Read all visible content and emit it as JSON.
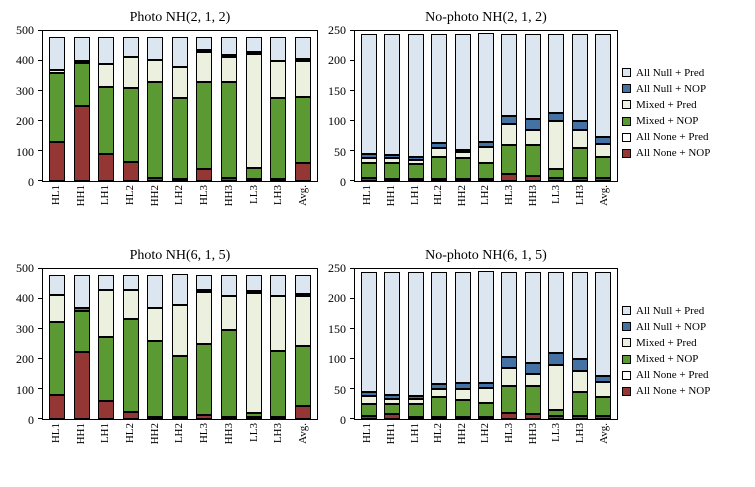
{
  "legend": {
    "items": [
      {
        "label": "All Null + Pred",
        "color": "#dce6f1"
      },
      {
        "label": "All Null + NOP",
        "color": "#4472a4"
      },
      {
        "label": "Mixed + Pred",
        "color": "#ebf1de"
      },
      {
        "label": "Mixed + NOP",
        "color": "#5b9a32"
      },
      {
        "label": "All None + Pred",
        "color": "#ffffff"
      },
      {
        "label": "All None + NOP",
        "color": "#943634"
      }
    ]
  },
  "chart_data": [
    {
      "type": "bar",
      "stacked": true,
      "title": "Photo NH(2, 1, 2)",
      "ylim": [
        0,
        500
      ],
      "ytick_interval": 100,
      "grid": false,
      "legend_position": "right",
      "categories": [
        "HL1",
        "HH1",
        "LH1",
        "HL2",
        "HH2",
        "LH2",
        "HL3",
        "HH3",
        "LL3",
        "LH3",
        "Avg."
      ],
      "series": [
        {
          "name": "All None + NOP",
          "color": "#943634",
          "values": [
            130,
            250,
            90,
            65,
            10,
            5,
            40,
            10,
            8,
            5,
            60
          ]
        },
        {
          "name": "All None + Pred",
          "color": "#ffffff",
          "values": [
            0,
            0,
            0,
            0,
            0,
            0,
            0,
            0,
            0,
            0,
            0
          ]
        },
        {
          "name": "Mixed + NOP",
          "color": "#5b9a32",
          "values": [
            230,
            145,
            225,
            245,
            320,
            270,
            290,
            320,
            35,
            270,
            220
          ]
        },
        {
          "name": "Mixed + Pred",
          "color": "#ebf1de",
          "values": [
            10,
            5,
            75,
            105,
            75,
            105,
            100,
            85,
            380,
            125,
            120
          ]
        },
        {
          "name": "All Null + NOP",
          "color": "#4472a4",
          "values": [
            0,
            0,
            0,
            0,
            0,
            0,
            8,
            5,
            7,
            0,
            5
          ]
        },
        {
          "name": "All Null + Pred",
          "color": "#dce6f1",
          "values": [
            110,
            80,
            90,
            65,
            75,
            100,
            42,
            60,
            50,
            80,
            75
          ]
        }
      ]
    },
    {
      "type": "bar",
      "stacked": true,
      "title": "No-photo NH(2, 1, 2)",
      "ylim": [
        0,
        250
      ],
      "ytick_interval": 50,
      "grid": false,
      "legend_position": "right",
      "categories": [
        "HL1",
        "HH1",
        "LH1",
        "HL2",
        "HH2",
        "LH2",
        "HL3",
        "HH3",
        "LL3",
        "LH3",
        "Avg."
      ],
      "series": [
        {
          "name": "All None + NOP",
          "color": "#943634",
          "values": [
            5,
            3,
            3,
            3,
            3,
            2,
            12,
            8,
            5,
            5,
            5
          ]
        },
        {
          "name": "All None + Pred",
          "color": "#ffffff",
          "values": [
            0,
            0,
            0,
            0,
            0,
            0,
            0,
            0,
            0,
            0,
            0
          ]
        },
        {
          "name": "Mixed + NOP",
          "color": "#5b9a32",
          "values": [
            25,
            27,
            25,
            37,
            35,
            26,
            48,
            52,
            15,
            50,
            35
          ]
        },
        {
          "name": "Mixed + Pred",
          "color": "#ebf1de",
          "values": [
            8,
            8,
            6,
            15,
            10,
            27,
            35,
            25,
            80,
            30,
            22
          ]
        },
        {
          "name": "All Null + NOP",
          "color": "#4472a4",
          "values": [
            7,
            5,
            6,
            8,
            4,
            8,
            13,
            18,
            13,
            15,
            11
          ]
        },
        {
          "name": "All Null + Pred",
          "color": "#dce6f1",
          "values": [
            200,
            202,
            205,
            182,
            193,
            182,
            137,
            142,
            132,
            145,
            172
          ]
        }
      ]
    },
    {
      "type": "bar",
      "stacked": true,
      "title": "Photo NH(6, 1, 5)",
      "ylim": [
        0,
        500
      ],
      "ytick_interval": 100,
      "grid": false,
      "legend_position": "right",
      "categories": [
        "HL1",
        "HH1",
        "LH1",
        "HL2",
        "HH2",
        "LH2",
        "HL3",
        "HH3",
        "LL3",
        "LH3",
        "Avg."
      ],
      "series": [
        {
          "name": "All None + NOP",
          "color": "#943634",
          "values": [
            80,
            225,
            60,
            25,
            5,
            3,
            15,
            5,
            8,
            5,
            45
          ]
        },
        {
          "name": "All None + Pred",
          "color": "#ffffff",
          "values": [
            0,
            0,
            0,
            0,
            0,
            0,
            0,
            0,
            0,
            0,
            0
          ]
        },
        {
          "name": "Mixed + NOP",
          "color": "#5b9a32",
          "values": [
            245,
            135,
            215,
            310,
            255,
            202,
            235,
            290,
            12,
            220,
            200
          ]
        },
        {
          "name": "Mixed + Pred",
          "color": "#ebf1de",
          "values": [
            90,
            0,
            155,
            95,
            110,
            170,
            175,
            115,
            400,
            185,
            165
          ]
        },
        {
          "name": "All Null + NOP",
          "color": "#4472a4",
          "values": [
            0,
            10,
            0,
            0,
            0,
            0,
            5,
            0,
            5,
            0,
            5
          ]
        },
        {
          "name": "All Null + Pred",
          "color": "#dce6f1",
          "values": [
            65,
            110,
            50,
            50,
            110,
            105,
            50,
            70,
            55,
            70,
            65
          ]
        }
      ]
    },
    {
      "type": "bar",
      "stacked": true,
      "title": "No-photo NH(6, 1, 5)",
      "ylim": [
        0,
        250
      ],
      "ytick_interval": 50,
      "grid": false,
      "legend_position": "right",
      "categories": [
        "HL1",
        "HH1",
        "LH1",
        "HL2",
        "HH2",
        "LH2",
        "HL3",
        "HH3",
        "LL3",
        "LH3",
        "Avg."
      ],
      "series": [
        {
          "name": "All None + NOP",
          "color": "#943634",
          "values": [
            5,
            8,
            3,
            3,
            3,
            2,
            10,
            8,
            5,
            5,
            5
          ]
        },
        {
          "name": "All None + Pred",
          "color": "#ffffff",
          "values": [
            0,
            0,
            0,
            0,
            0,
            0,
            0,
            0,
            0,
            0,
            0
          ]
        },
        {
          "name": "Mixed + NOP",
          "color": "#5b9a32",
          "values": [
            20,
            17,
            22,
            34,
            29,
            23,
            45,
            47,
            10,
            40,
            32
          ]
        },
        {
          "name": "Mixed + Pred",
          "color": "#ebf1de",
          "values": [
            13,
            8,
            8,
            13,
            18,
            25,
            30,
            20,
            75,
            35,
            25
          ]
        },
        {
          "name": "All Null + NOP",
          "color": "#4472a4",
          "values": [
            7,
            7,
            5,
            8,
            10,
            8,
            18,
            18,
            20,
            20,
            10
          ]
        },
        {
          "name": "All Null + Pred",
          "color": "#dce6f1",
          "values": [
            200,
            205,
            207,
            187,
            185,
            187,
            142,
            152,
            135,
            145,
            173
          ]
        }
      ]
    }
  ]
}
